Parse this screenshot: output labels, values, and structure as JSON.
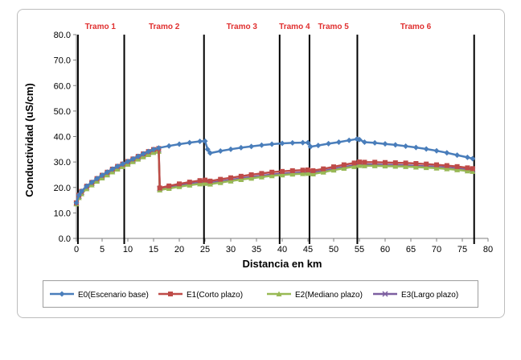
{
  "chart_data": {
    "type": "line",
    "xlabel": "Distancia en km",
    "ylabel": "Conductividad (uS/cm)",
    "xlim": [
      0,
      80
    ],
    "ylim": [
      0,
      80
    ],
    "x_ticks": [
      0,
      5,
      10,
      15,
      20,
      25,
      30,
      35,
      40,
      45,
      50,
      55,
      60,
      65,
      70,
      75,
      80
    ],
    "y_ticks": [
      "0.0",
      "10.0",
      "20.0",
      "30.0",
      "40.0",
      "50.0",
      "60.0",
      "70.0",
      "80.0"
    ],
    "grid": false,
    "legend_position": "bottom",
    "sections": [
      {
        "label": "Tramo 1",
        "start": 0,
        "end": 9.3
      },
      {
        "label": "Tramo 2",
        "start": 9.3,
        "end": 24.8
      },
      {
        "label": "Tramo 3",
        "start": 24.8,
        "end": 39.5
      },
      {
        "label": "Tramo 4",
        "start": 39.5,
        "end": 45.3
      },
      {
        "label": "Tramo 5",
        "start": 45.3,
        "end": 54.6
      },
      {
        "label": "Tramo 6",
        "start": 54.6,
        "end": 77.3
      }
    ],
    "section_lines_x": [
      0.3,
      9.3,
      24.8,
      39.5,
      45.3,
      54.6,
      77.3
    ],
    "series": [
      {
        "name": "E0(Escenario base)",
        "color": "#4a7ebb",
        "marker": "diamond",
        "points": [
          [
            0,
            14
          ],
          [
            0.5,
            17
          ],
          [
            1,
            18.5
          ],
          [
            2,
            20.5
          ],
          [
            3,
            22
          ],
          [
            4,
            23.5
          ],
          [
            5,
            24.8
          ],
          [
            6,
            26
          ],
          [
            7,
            27.2
          ],
          [
            8,
            28.3
          ],
          [
            9,
            29.2
          ],
          [
            10,
            30.2
          ],
          [
            11,
            31.2
          ],
          [
            12,
            32.2
          ],
          [
            13,
            33.2
          ],
          [
            14,
            34.1
          ],
          [
            15,
            34.9
          ],
          [
            16,
            35.5
          ],
          [
            18,
            36.3
          ],
          [
            20,
            37
          ],
          [
            22,
            37.6
          ],
          [
            24,
            38.1
          ],
          [
            25,
            38.2
          ],
          [
            25.5,
            35
          ],
          [
            26,
            33.5
          ],
          [
            28,
            34.3
          ],
          [
            30,
            35
          ],
          [
            32,
            35.6
          ],
          [
            34,
            36.1
          ],
          [
            36,
            36.6
          ],
          [
            38,
            37
          ],
          [
            40,
            37.3
          ],
          [
            42,
            37.5
          ],
          [
            44,
            37.6
          ],
          [
            45,
            37.6
          ],
          [
            45.5,
            36
          ],
          [
            47,
            36.5
          ],
          [
            49,
            37.2
          ],
          [
            51,
            37.8
          ],
          [
            53,
            38.5
          ],
          [
            54.5,
            39
          ],
          [
            55,
            38.8
          ],
          [
            56,
            37.8
          ],
          [
            58,
            37.5
          ],
          [
            60,
            37.1
          ],
          [
            62,
            36.7
          ],
          [
            64,
            36.2
          ],
          [
            66,
            35.7
          ],
          [
            68,
            35.1
          ],
          [
            70,
            34.4
          ],
          [
            72,
            33.6
          ],
          [
            74,
            32.7
          ],
          [
            76,
            31.8
          ],
          [
            77,
            31.3
          ]
        ]
      },
      {
        "name": "E1(Corto plazo)",
        "color": "#be4b48",
        "marker": "square",
        "points": [
          [
            0,
            14
          ],
          [
            0.5,
            17
          ],
          [
            1,
            18.5
          ],
          [
            2,
            20.5
          ],
          [
            3,
            22
          ],
          [
            4,
            23.5
          ],
          [
            5,
            24.8
          ],
          [
            6,
            26
          ],
          [
            7,
            27.2
          ],
          [
            8,
            28.3
          ],
          [
            9,
            29.2
          ],
          [
            10,
            30.2
          ],
          [
            11,
            31.2
          ],
          [
            12,
            32.2
          ],
          [
            13,
            33.2
          ],
          [
            14,
            34.1
          ],
          [
            15,
            34.9
          ],
          [
            16,
            35.3
          ],
          [
            16.2,
            19.8
          ],
          [
            18,
            20.6
          ],
          [
            20,
            21.4
          ],
          [
            22,
            22.1
          ],
          [
            24,
            22.7
          ],
          [
            25,
            22.9
          ],
          [
            26,
            22.5
          ],
          [
            28,
            23.2
          ],
          [
            30,
            23.8
          ],
          [
            32,
            24.4
          ],
          [
            34,
            25
          ],
          [
            36,
            25.5
          ],
          [
            38,
            26
          ],
          [
            40,
            26.3
          ],
          [
            42,
            26.6
          ],
          [
            44,
            26.8
          ],
          [
            45,
            26.9
          ],
          [
            46,
            26.6
          ],
          [
            48,
            27.3
          ],
          [
            50,
            28.1
          ],
          [
            52,
            28.9
          ],
          [
            54,
            29.6
          ],
          [
            55,
            30
          ],
          [
            56,
            29.9
          ],
          [
            58,
            29.9
          ],
          [
            60,
            29.8
          ],
          [
            62,
            29.7
          ],
          [
            64,
            29.6
          ],
          [
            66,
            29.4
          ],
          [
            68,
            29.2
          ],
          [
            70,
            28.9
          ],
          [
            72,
            28.6
          ],
          [
            74,
            28.2
          ],
          [
            76,
            27.7
          ],
          [
            77,
            27.4
          ]
        ]
      },
      {
        "name": "E2(Mediano plazo)",
        "color": "#98b954",
        "marker": "triangle",
        "points": [
          [
            0,
            13.5
          ],
          [
            0.5,
            16
          ],
          [
            1,
            17.5
          ],
          [
            2,
            19.5
          ],
          [
            3,
            21
          ],
          [
            4,
            22.4
          ],
          [
            5,
            23.7
          ],
          [
            6,
            24.9
          ],
          [
            7,
            26.1
          ],
          [
            8,
            27.2
          ],
          [
            9,
            28.2
          ],
          [
            10,
            29.1
          ],
          [
            11,
            30.1
          ],
          [
            12,
            31.1
          ],
          [
            13,
            32
          ],
          [
            14,
            32.9
          ],
          [
            15,
            33.7
          ],
          [
            16,
            34.2
          ],
          [
            16.2,
            19
          ],
          [
            18,
            19.6
          ],
          [
            20,
            20.3
          ],
          [
            22,
            20.9
          ],
          [
            24,
            21.4
          ],
          [
            25,
            21.6
          ],
          [
            26,
            21.3
          ],
          [
            28,
            21.9
          ],
          [
            30,
            22.5
          ],
          [
            32,
            23.1
          ],
          [
            34,
            23.6
          ],
          [
            36,
            24.1
          ],
          [
            38,
            24.6
          ],
          [
            40,
            24.9
          ],
          [
            42,
            25.2
          ],
          [
            44,
            25.4
          ],
          [
            45,
            25.5
          ],
          [
            46,
            25.3
          ],
          [
            48,
            26
          ],
          [
            50,
            26.8
          ],
          [
            52,
            27.5
          ],
          [
            54,
            28.2
          ],
          [
            55,
            28.6
          ],
          [
            56,
            28.5
          ],
          [
            58,
            28.5
          ],
          [
            60,
            28.4
          ],
          [
            62,
            28.3
          ],
          [
            64,
            28.2
          ],
          [
            66,
            28
          ],
          [
            68,
            27.8
          ],
          [
            70,
            27.6
          ],
          [
            72,
            27.3
          ],
          [
            74,
            26.9
          ],
          [
            76,
            26.5
          ],
          [
            77,
            26.3
          ]
        ]
      },
      {
        "name": "E3(Largo plazo)",
        "color": "#7d5fa0",
        "marker": "x",
        "points": [
          [
            0,
            13.8
          ],
          [
            0.5,
            16.5
          ],
          [
            1,
            18
          ],
          [
            2,
            20
          ],
          [
            3,
            21.5
          ],
          [
            4,
            22.9
          ],
          [
            5,
            24.2
          ],
          [
            6,
            25.4
          ],
          [
            7,
            26.6
          ],
          [
            8,
            27.7
          ],
          [
            9,
            28.7
          ],
          [
            10,
            29.6
          ],
          [
            11,
            30.6
          ],
          [
            12,
            31.6
          ],
          [
            13,
            32.5
          ],
          [
            14,
            33.4
          ],
          [
            15,
            34.2
          ],
          [
            16,
            34.7
          ],
          [
            16.2,
            19.5
          ],
          [
            18,
            20.1
          ],
          [
            20,
            20.8
          ],
          [
            22,
            21.4
          ],
          [
            24,
            21.9
          ],
          [
            25,
            22.1
          ],
          [
            26,
            21.8
          ],
          [
            28,
            22.4
          ],
          [
            30,
            23
          ],
          [
            32,
            23.6
          ],
          [
            34,
            24.1
          ],
          [
            36,
            24.6
          ],
          [
            38,
            25.1
          ],
          [
            40,
            25.4
          ],
          [
            42,
            25.7
          ],
          [
            44,
            25.9
          ],
          [
            45,
            26
          ],
          [
            46,
            25.8
          ],
          [
            48,
            26.5
          ],
          [
            50,
            27.3
          ],
          [
            52,
            28
          ],
          [
            54,
            28.7
          ],
          [
            55,
            29.1
          ],
          [
            56,
            29
          ],
          [
            58,
            29
          ],
          [
            60,
            28.9
          ],
          [
            62,
            28.8
          ],
          [
            64,
            28.7
          ],
          [
            66,
            28.5
          ],
          [
            68,
            28.3
          ],
          [
            70,
            28.1
          ],
          [
            72,
            27.8
          ],
          [
            74,
            27.4
          ],
          [
            76,
            27
          ],
          [
            77,
            26.8
          ]
        ]
      }
    ]
  }
}
